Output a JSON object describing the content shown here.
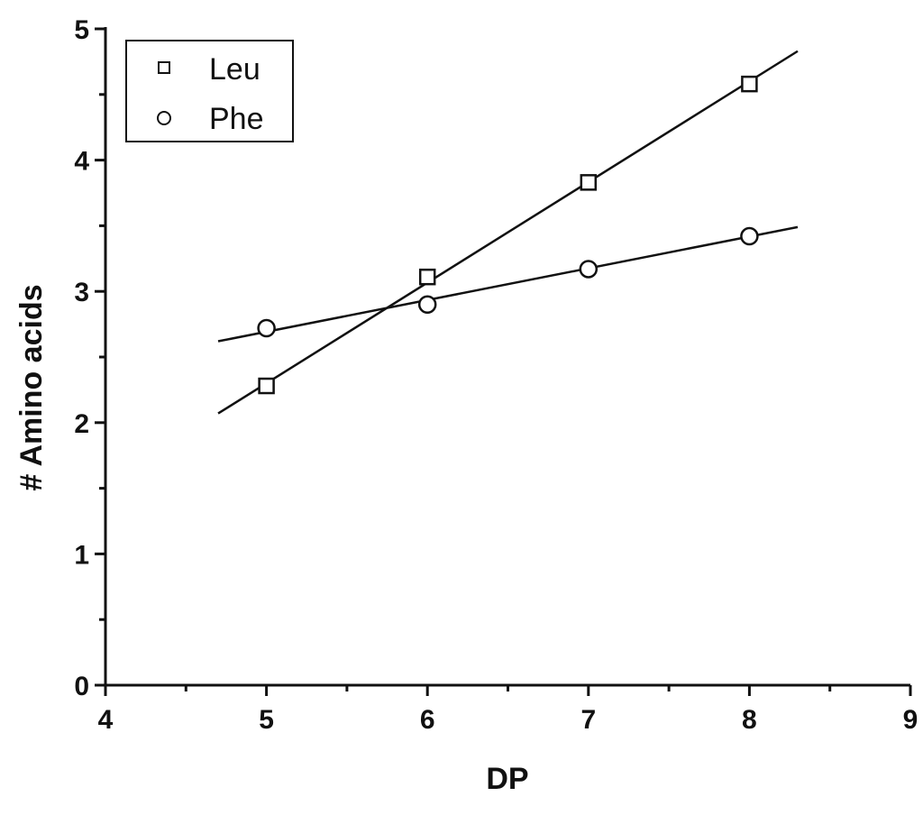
{
  "chart_data": {
    "type": "scatter",
    "title": "",
    "xlabel": "DP",
    "ylabel": "# Amino acids",
    "xlim": [
      4,
      9
    ],
    "ylim": [
      0,
      5
    ],
    "xticks": [
      4,
      5,
      6,
      7,
      8,
      9
    ],
    "yticks": [
      0,
      1,
      2,
      3,
      4,
      5
    ],
    "grid": false,
    "legend_position": "top-left",
    "series": [
      {
        "name": "Leu",
        "marker": "square",
        "x": [
          5,
          6,
          7,
          8
        ],
        "y": [
          2.28,
          3.11,
          3.83,
          4.58
        ],
        "fit_line": {
          "x": [
            4.7,
            8.3
          ],
          "y": [
            2.07,
            4.83
          ]
        }
      },
      {
        "name": "Phe",
        "marker": "circle",
        "x": [
          5,
          6,
          7,
          8
        ],
        "y": [
          2.72,
          2.9,
          3.17,
          3.42
        ],
        "fit_line": {
          "x": [
            4.7,
            8.3
          ],
          "y": [
            2.62,
            3.49
          ]
        }
      }
    ]
  }
}
